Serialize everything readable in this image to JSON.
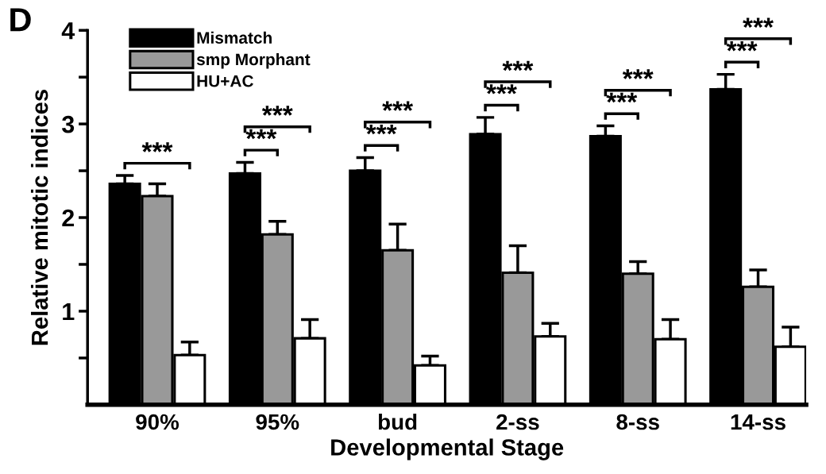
{
  "chart_data": {
    "type": "bar",
    "xlabel": "Developmental Stage",
    "ylabel": "Relative mitotic indices",
    "categories": [
      "90%",
      "95%",
      "bud",
      "2-ss",
      "8-ss",
      "14-ss"
    ],
    "series": [
      {
        "name": "Mismatch",
        "color": "#000000",
        "values": [
          2.36,
          2.47,
          2.5,
          2.89,
          2.87,
          3.37
        ],
        "errors": [
          [
            2.36,
            2.45
          ],
          [
            2.47,
            2.59
          ],
          [
            2.5,
            2.64
          ],
          [
            2.89,
            3.07
          ],
          [
            2.87,
            2.98
          ],
          [
            3.37,
            3.53
          ]
        ]
      },
      {
        "name": "smp Morphant",
        "color": "#999999",
        "values": [
          2.23,
          1.82,
          1.65,
          1.41,
          1.4,
          1.26
        ],
        "errors": [
          [
            2.23,
            2.36
          ],
          [
            1.82,
            1.96
          ],
          [
            1.65,
            1.93
          ],
          [
            1.41,
            1.7
          ],
          [
            1.4,
            1.53
          ],
          [
            1.26,
            1.44
          ]
        ]
      },
      {
        "name": "HU+AC",
        "color": "#ffffff",
        "values": [
          0.53,
          0.71,
          0.42,
          0.73,
          0.7,
          0.62
        ],
        "errors": [
          [
            0.53,
            0.67
          ],
          [
            0.71,
            0.91
          ],
          [
            0.42,
            0.52
          ],
          [
            0.73,
            0.87
          ],
          [
            0.7,
            0.91
          ],
          [
            0.62,
            0.83
          ]
        ]
      }
    ],
    "ylim": [
      0,
      4
    ],
    "yticks": [
      {
        "value": 0.5,
        "label": null
      },
      1,
      {
        "value": 1.5,
        "label": null
      },
      2,
      {
        "value": 2.5,
        "label": null
      },
      3,
      {
        "value": 3.5,
        "label": null
      },
      4
    ],
    "legend": "top left",
    "grid": false,
    "annotations": [
      "D",
      "***",
      "***",
      "***",
      "***",
      "***",
      "***",
      "***",
      "***",
      "***",
      "***",
      "***"
    ]
  }
}
